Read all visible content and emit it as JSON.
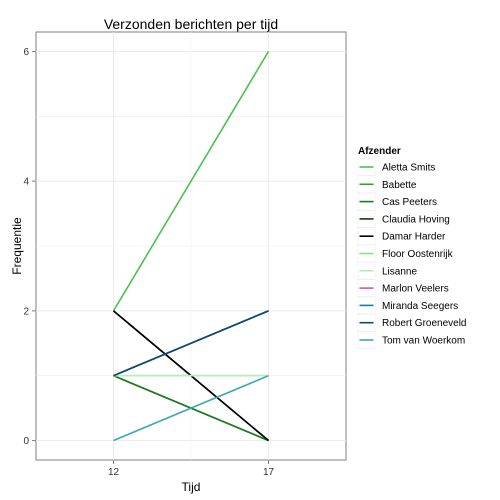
{
  "chart_data": {
    "type": "line",
    "title": "Verzonden berichten per tijd",
    "xlabel": "Tijd",
    "ylabel": "Frequentie",
    "x": [
      12,
      17
    ],
    "x_ticks": [
      "12",
      "17"
    ],
    "y_ticks": [
      "0",
      "2",
      "4",
      "6"
    ],
    "ylim": [
      -0.3,
      6.3
    ],
    "grid": true,
    "legend_title": "Afzender",
    "legend_position": "right",
    "series": [
      {
        "name": "Aletta Smits",
        "color": "#4bc24b",
        "values": [
          2,
          6
        ]
      },
      {
        "name": "Babette",
        "color": "#2ea12e",
        "values": [
          1,
          0
        ]
      },
      {
        "name": "Cas Peeters",
        "color": "#1f7a1f",
        "values": [
          1,
          0
        ]
      },
      {
        "name": "Claudia Hoving",
        "color": "#0e3d0e",
        "values": [
          2,
          0
        ]
      },
      {
        "name": "Damar Harder",
        "color": "#000000",
        "values": [
          2,
          0
        ]
      },
      {
        "name": "Floor Oostenrijk",
        "color": "#8fdf8f",
        "values": [
          1,
          1
        ]
      },
      {
        "name": "Lisanne",
        "color": "#b8ecb8",
        "values": [
          1,
          1
        ]
      },
      {
        "name": "Marlon Veelers",
        "color": "#d94fb0",
        "values": [
          1,
          2
        ]
      },
      {
        "name": "Miranda Seegers",
        "color": "#1f7a99",
        "values": [
          1,
          2
        ]
      },
      {
        "name": "Robert Groeneveld",
        "color": "#0b4a6b",
        "values": [
          1,
          2
        ]
      },
      {
        "name": "Tom van Woerkom",
        "color": "#3aa6b8",
        "values": [
          0,
          1
        ]
      }
    ]
  }
}
